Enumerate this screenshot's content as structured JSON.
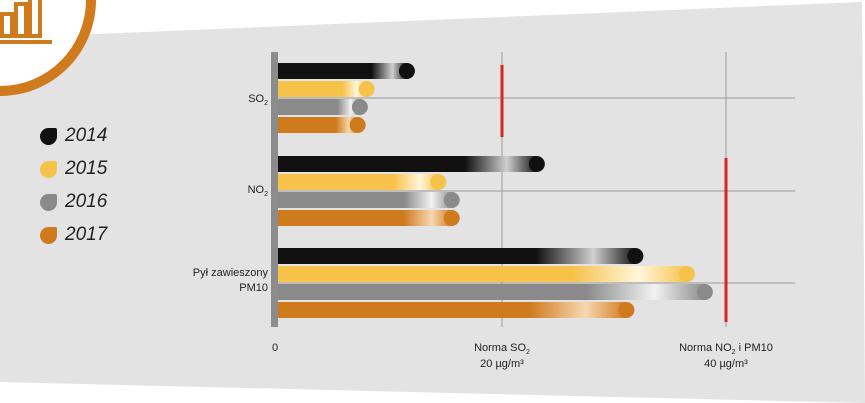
{
  "chart_data": {
    "type": "bar",
    "orientation": "horizontal",
    "categories": [
      {
        "main": "SO",
        "sub": "2",
        "rest": ""
      },
      {
        "main": "NO",
        "sub": "2",
        "rest": ""
      },
      {
        "main": "Pył zawieszony",
        "line2": "PM10"
      }
    ],
    "series": [
      {
        "name": "2014",
        "color": "#111111",
        "values": [
          11.6,
          23.2,
          32.0
        ]
      },
      {
        "name": "2015",
        "color": "#f7c24a",
        "values": [
          8.0,
          14.4,
          36.6
        ]
      },
      {
        "name": "2016",
        "color": "#8a8a8a",
        "values": [
          7.4,
          15.6,
          38.2
        ]
      },
      {
        "name": "2017",
        "color": "#d07a1e",
        "values": [
          7.2,
          15.6,
          31.2
        ]
      }
    ],
    "xlim": [
      0,
      47
    ],
    "x_zero_label": "0",
    "gridlines": [
      20,
      40
    ],
    "thresholds": [
      {
        "value": 20,
        "label_line1_main": "Norma SO",
        "label_line1_sub": "2",
        "label_line1_rest": "",
        "label_line2": "20 µg/m³",
        "applies_to": [
          0
        ]
      },
      {
        "value": 40,
        "label_line1_main": "Norma NO",
        "label_line1_sub": "2",
        "label_line1_rest": " i PM10",
        "label_line2": "40 µg/m³",
        "applies_to": [
          1,
          2
        ]
      }
    ],
    "threshold_color": "#d7261e",
    "legend_position": "left"
  },
  "colors": {
    "panel_bg": "#e3e3e4",
    "axis": "#8c8c8c",
    "grid": "#9a9a9a",
    "brand_orange": "#d07a1e"
  },
  "icons": {
    "logo": "bar-chart-icon"
  }
}
